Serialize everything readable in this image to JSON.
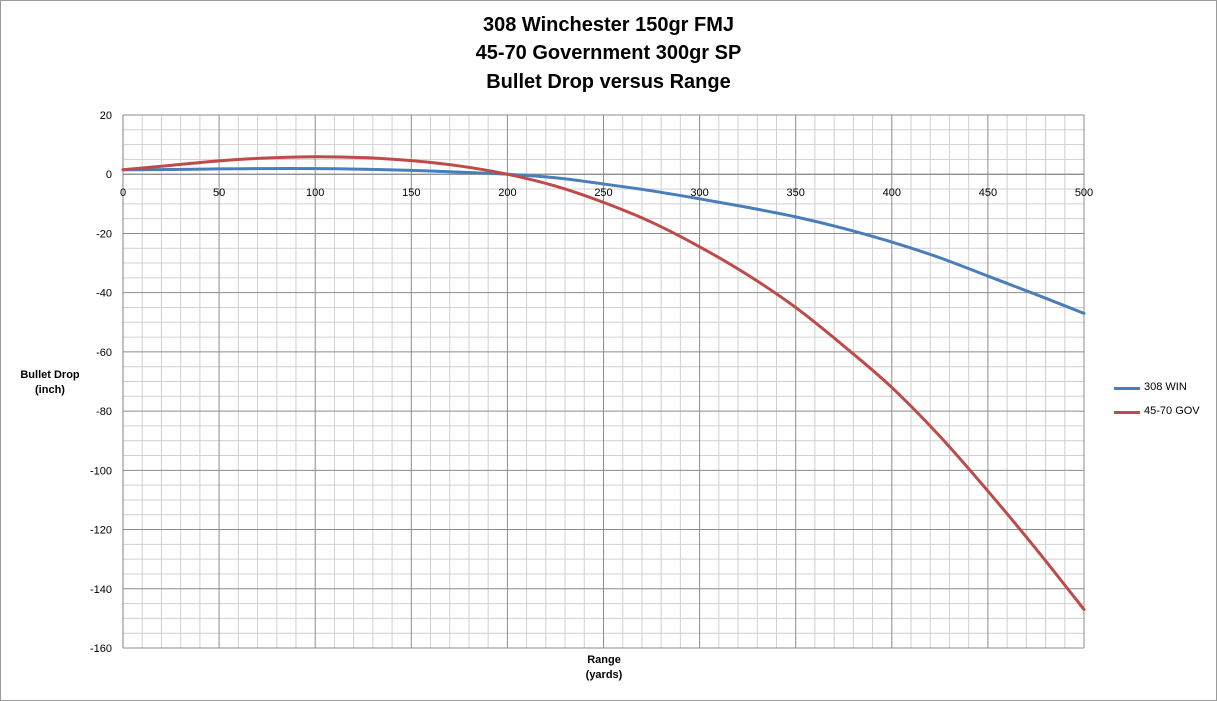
{
  "title": {
    "line1": "308 Winchester 150gr FMJ",
    "line2": "45-70 Government 300gr SP",
    "line3": "Bullet Drop versus Range"
  },
  "axes": {
    "y_title_line1": "Bullet Drop",
    "y_title_line2": "(inch)",
    "x_title_line1": "Range",
    "x_title_line2": "(yards)"
  },
  "legend": [
    {
      "label": "308 WIN",
      "color": "#4a7ebb"
    },
    {
      "label": "45-70 GOV",
      "color": "#be4b48"
    }
  ],
  "chart_data": {
    "type": "line",
    "title": "308 Winchester 150gr FMJ / 45-70 Government 300gr SP / Bullet Drop versus Range",
    "xlabel": "Range (yards)",
    "ylabel": "Bullet Drop (inch)",
    "xlim": [
      0,
      500
    ],
    "ylim": [
      -160,
      20
    ],
    "x_ticks": [
      0,
      50,
      100,
      150,
      200,
      250,
      300,
      350,
      400,
      450,
      500
    ],
    "y_ticks": [
      20,
      0,
      -20,
      -40,
      -60,
      -80,
      -100,
      -120,
      -140,
      -160
    ],
    "x_tick_labels": [
      "0",
      "50",
      "100",
      "150",
      "200",
      "250",
      "300",
      "350",
      "400",
      "450",
      "500"
    ],
    "y_tick_labels": [
      "20",
      "0",
      "-20",
      "-40",
      "-60",
      "-80",
      "-100",
      "-120",
      "-140",
      "-160"
    ],
    "grid": true,
    "legend_position": "right",
    "series": [
      {
        "name": "308 WIN",
        "color": "#4a7ebb",
        "x": [
          0,
          25,
          50,
          75,
          100,
          125,
          150,
          175,
          200,
          225,
          250,
          275,
          300,
          325,
          350,
          375,
          400,
          425,
          450,
          475,
          500
        ],
        "values": [
          1.5,
          1.6,
          1.8,
          1.9,
          1.9,
          1.7,
          1.3,
          0.7,
          0,
          -1.2,
          -3.3,
          -5.6,
          -8.3,
          -11.2,
          -14.4,
          -18.3,
          -22.9,
          -28.2,
          -34.4,
          -40.6,
          -47
        ]
      },
      {
        "name": "45-70 GOV",
        "color": "#be4b48",
        "x": [
          0,
          25,
          50,
          75,
          100,
          125,
          150,
          175,
          200,
          225,
          250,
          275,
          300,
          325,
          350,
          375,
          400,
          425,
          450,
          475,
          500
        ],
        "values": [
          1.5,
          3.0,
          4.5,
          5.5,
          5.9,
          5.6,
          4.6,
          2.8,
          0,
          -4.0,
          -9.5,
          -16.2,
          -24.5,
          -34.0,
          -45.0,
          -58.0,
          -72.0,
          -88.5,
          -107.0,
          -126.5,
          -147.0
        ]
      }
    ]
  }
}
